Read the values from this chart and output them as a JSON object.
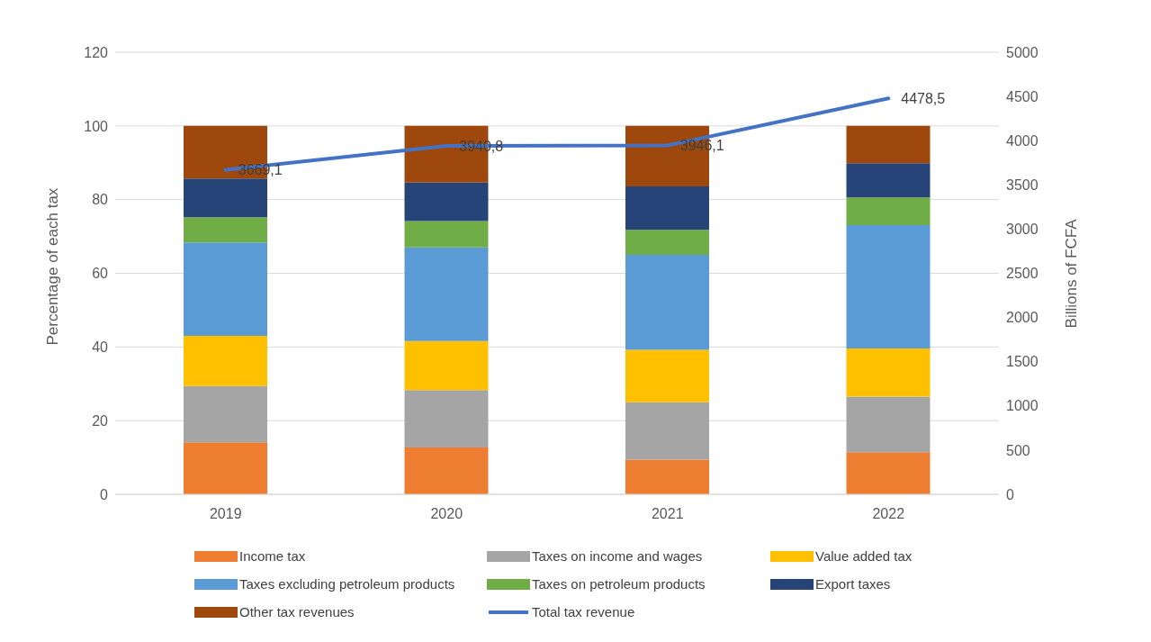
{
  "chart_data": {
    "type": "bar",
    "stacked": true,
    "categories": [
      "2019",
      "2020",
      "2021",
      "2022"
    ],
    "ylabel": "Percentage of each tax",
    "y2label": "Billions of FCFA",
    "ylim": [
      0,
      120
    ],
    "yticks": [
      0,
      20,
      40,
      60,
      80,
      100,
      120
    ],
    "y2lim": [
      0,
      5000
    ],
    "y2ticks": [
      0,
      500,
      1000,
      1500,
      2000,
      2500,
      3000,
      3500,
      4000,
      4500,
      5000
    ],
    "grid": "y",
    "legend": "bottom",
    "series": [
      {
        "name": "Income tax",
        "color": "#ed7d31",
        "values": [
          14.1,
          12.7,
          9.4,
          11.4
        ]
      },
      {
        "name": "Taxes on income and wages",
        "color": "#a5a5a5",
        "values": [
          15.3,
          15.6,
          15.6,
          15.1
        ]
      },
      {
        "name": "Value added tax",
        "color": "#ffc000",
        "values": [
          13.6,
          13.3,
          14.2,
          13.1
        ]
      },
      {
        "name": "Taxes excluding petroleum products",
        "color": "#5b9bd5",
        "values": [
          25.4,
          25.4,
          25.8,
          33.5
        ]
      },
      {
        "name": "Taxes on petroleum products",
        "color": "#70ad47",
        "values": [
          6.8,
          7.2,
          6.8,
          7.5
        ]
      },
      {
        "name": "Export taxes",
        "color": "#264478",
        "values": [
          10.5,
          10.4,
          11.8,
          9.3
        ]
      },
      {
        "name": "Other tax revenues",
        "color": "#9e480e",
        "values": [
          14.3,
          15.4,
          16.4,
          10.1
        ]
      },
      {
        "name": "Total tax revenue",
        "type": "line",
        "axis": "y2",
        "color": "#4472c4",
        "marker": "none",
        "values": [
          3669.1,
          3940.8,
          3946.1,
          4478.5
        ],
        "value_labels": [
          "3669,1",
          "3940,8",
          "3946,1",
          "4478,5"
        ]
      }
    ]
  }
}
